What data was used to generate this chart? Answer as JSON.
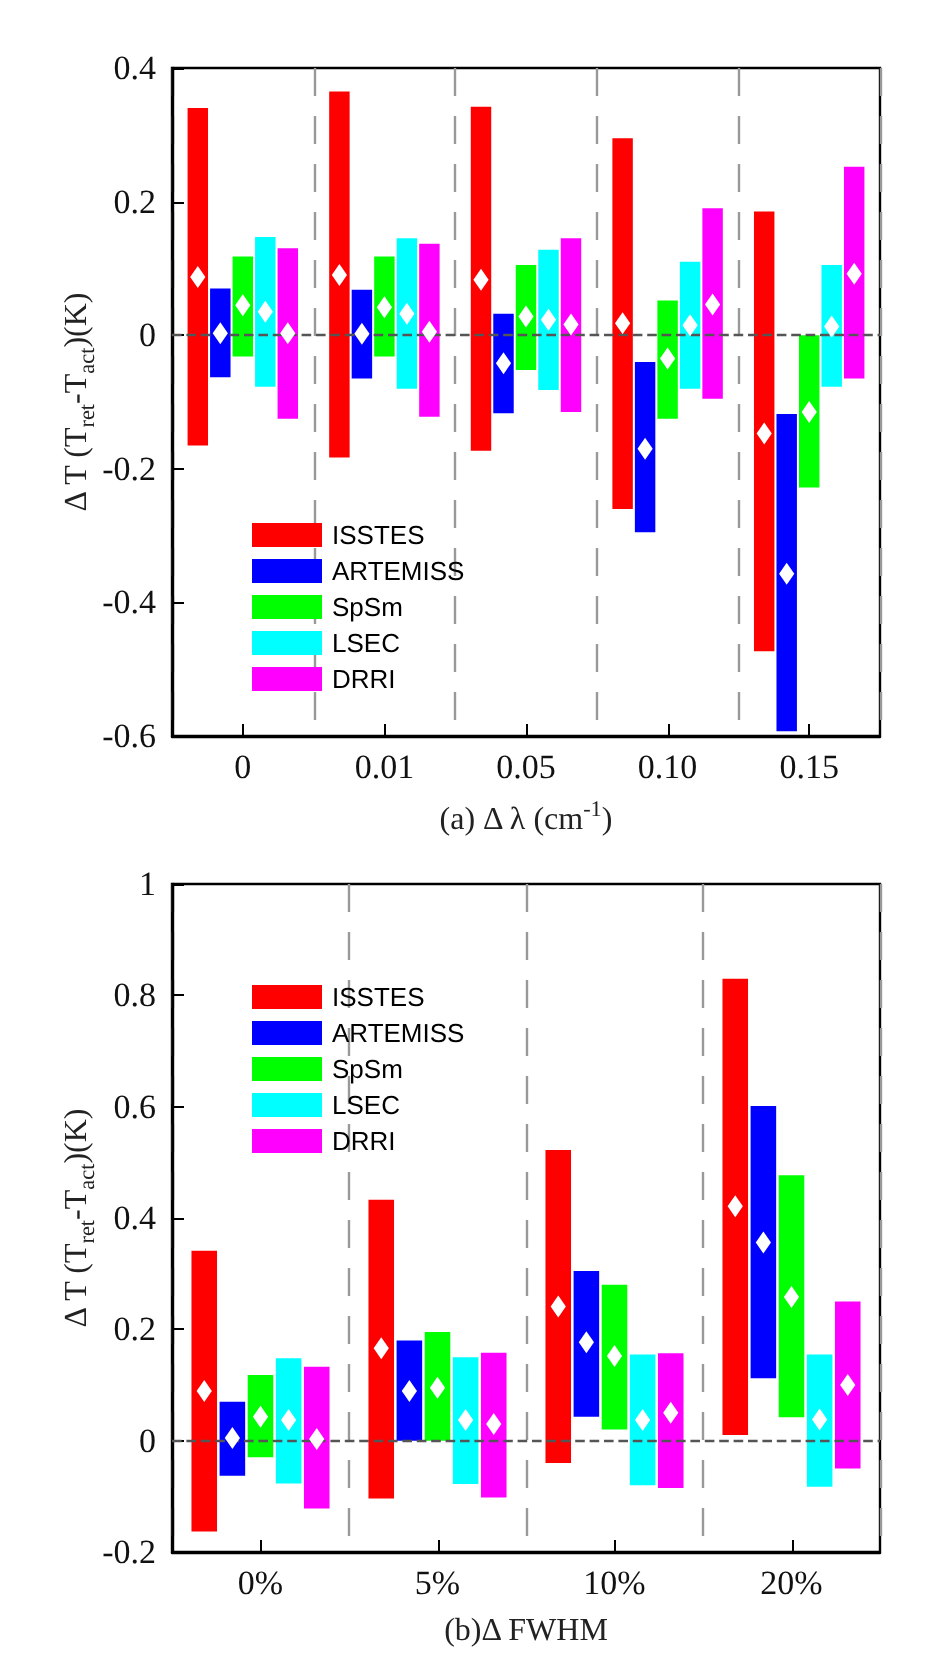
{
  "chart_data": [
    {
      "type": "bar",
      "xlabel": "(a) Δ λ (cm$^{-1}$)",
      "ylabel": "Δ T (T$_{ret}$-T$_{act}$)(K)",
      "categories": [
        "0",
        "0.01",
        "0.05",
        "0.10",
        "0.15"
      ],
      "ylim": [
        -0.6,
        0.4
      ],
      "yticks": [
        -0.6,
        -0.4,
        -0.2,
        0,
        0.2,
        0.4
      ],
      "grid": "x",
      "legend": "bottom left",
      "ref_lines": [
        {
          "axis": "y",
          "value": 0,
          "line_style": "dashed",
          "color": "#555555"
        }
      ],
      "series": [
        {
          "name": "ISSTES",
          "color": "#ff0000",
          "base": [
            -0.165,
            -0.183,
            -0.173,
            -0.26,
            -0.473
          ],
          "values": [
            0.505,
            0.548,
            0.515,
            0.555,
            0.658
          ]
        },
        {
          "name": "ARTEMISS",
          "color": "#0000ff",
          "base": [
            -0.063,
            -0.065,
            -0.117,
            -0.295,
            -0.593
          ],
          "values": [
            0.133,
            0.133,
            0.149,
            0.255,
            0.475
          ]
        },
        {
          "name": "SpSm",
          "color": "#00ff00",
          "base": [
            -0.032,
            -0.032,
            -0.052,
            -0.125,
            -0.228
          ],
          "values": [
            0.15,
            0.15,
            0.157,
            0.177,
            0.228
          ]
        },
        {
          "name": "LSEC",
          "color": "#00ffff",
          "base": [
            -0.077,
            -0.08,
            -0.082,
            -0.08,
            -0.077
          ],
          "values": [
            0.224,
            0.225,
            0.21,
            0.19,
            0.182
          ]
        },
        {
          "name": "DRRI",
          "color": "#ff00ff",
          "base": [
            -0.125,
            -0.122,
            -0.115,
            -0.095,
            -0.065
          ],
          "values": [
            0.255,
            0.259,
            0.26,
            0.285,
            0.317
          ]
        },
        {
          "type": "scatter",
          "color": "#ffffff",
          "marker": "diamond",
          "x": [
            "0",
            "0.01",
            "0.05",
            "0.10",
            "0.15"
          ],
          "values": [
            0.087,
            0.09,
            0.083,
            0.018,
            -0.147
          ]
        },
        {
          "type": "scatter",
          "color": "#ffffff",
          "marker": "diamond",
          "x": [
            "0",
            "0.01",
            "0.05",
            "0.10",
            "0.15"
          ],
          "values": [
            0.003,
            0.002,
            -0.042,
            -0.17,
            -0.357
          ]
        },
        {
          "type": "scatter",
          "color": "#ffffff",
          "marker": "diamond",
          "x": [
            "0",
            "0.01",
            "0.05",
            "0.10",
            "0.15"
          ],
          "values": [
            0.045,
            0.042,
            0.028,
            -0.035,
            -0.115
          ]
        },
        {
          "type": "scatter",
          "color": "#ffffff",
          "marker": "diamond",
          "x": [
            "0",
            "0.01",
            "0.05",
            "0.10",
            "0.15"
          ],
          "values": [
            0.035,
            0.032,
            0.023,
            0.015,
            0.013
          ]
        },
        {
          "type": "scatter",
          "color": "#ffffff",
          "marker": "diamond",
          "x": [
            "0",
            "0.01",
            "0.05",
            "0.10",
            "0.15"
          ],
          "values": [
            0.003,
            0.005,
            0.016,
            0.046,
            0.092
          ]
        }
      ]
    },
    {
      "type": "bar",
      "xlabel": "(b)Δ FWHM",
      "ylabel": "Δ T (T$_{ret}$-T$_{act}$)(K)",
      "categories": [
        "0%",
        "5%",
        "10%",
        "20%"
      ],
      "ylim": [
        -0.2,
        1
      ],
      "yticks": [
        -0.2,
        0,
        0.2,
        0.4,
        0.6,
        0.8,
        1
      ],
      "grid": "x",
      "legend": "top left",
      "ref_lines": [
        {
          "axis": "y",
          "value": 0,
          "line_style": "dashed",
          "color": "#555555"
        }
      ],
      "series": [
        {
          "name": "ISSTES",
          "color": "#ff0000",
          "base": [
            -0.163,
            -0.104,
            -0.04,
            0.01
          ],
          "values": [
            0.504,
            0.537,
            0.562,
            0.82
          ]
        },
        {
          "name": "ARTEMISS",
          "color": "#0000ff",
          "base": [
            -0.063,
            0,
            0.043,
            0.112
          ],
          "values": [
            0.133,
            0.18,
            0.262,
            0.489
          ]
        },
        {
          "name": "SpSm",
          "color": "#00ff00",
          "base": [
            -0.03,
            0,
            0.02,
            0.042
          ],
          "values": [
            0.148,
            0.195,
            0.26,
            0.435
          ]
        },
        {
          "name": "LSEC",
          "color": "#00ffff",
          "base": [
            -0.077,
            -0.078,
            -0.08,
            -0.083
          ],
          "values": [
            0.225,
            0.228,
            0.235,
            0.238
          ]
        },
        {
          "name": "DRRI",
          "color": "#ff00ff",
          "base": [
            -0.122,
            -0.102,
            -0.085,
            -0.05
          ],
          "values": [
            0.255,
            0.26,
            0.242,
            0.3
          ]
        },
        {
          "type": "scatter",
          "color": "#ffffff",
          "marker": "diamond",
          "x": [
            "0%",
            "5%",
            "10%",
            "20%"
          ],
          "values": [
            0.089,
            0.166,
            0.241,
            0.421
          ]
        },
        {
          "type": "scatter",
          "color": "#ffffff",
          "marker": "diamond",
          "x": [
            "0%",
            "5%",
            "10%",
            "20%"
          ],
          "values": [
            0.005,
            0.089,
            0.177,
            0.356
          ]
        },
        {
          "type": "scatter",
          "color": "#ffffff",
          "marker": "diamond",
          "x": [
            "0%",
            "5%",
            "10%",
            "20%"
          ],
          "values": [
            0.043,
            0.095,
            0.152,
            0.258
          ]
        },
        {
          "type": "scatter",
          "color": "#ffffff",
          "marker": "diamond",
          "x": [
            "0%",
            "5%",
            "10%",
            "20%"
          ],
          "values": [
            0.037,
            0.037,
            0.037,
            0.038
          ]
        },
        {
          "type": "scatter",
          "color": "#ffffff",
          "marker": "diamond",
          "x": [
            "0%",
            "5%",
            "10%",
            "20%"
          ],
          "values": [
            0.003,
            0.03,
            0.05,
            0.1
          ]
        }
      ]
    }
  ]
}
